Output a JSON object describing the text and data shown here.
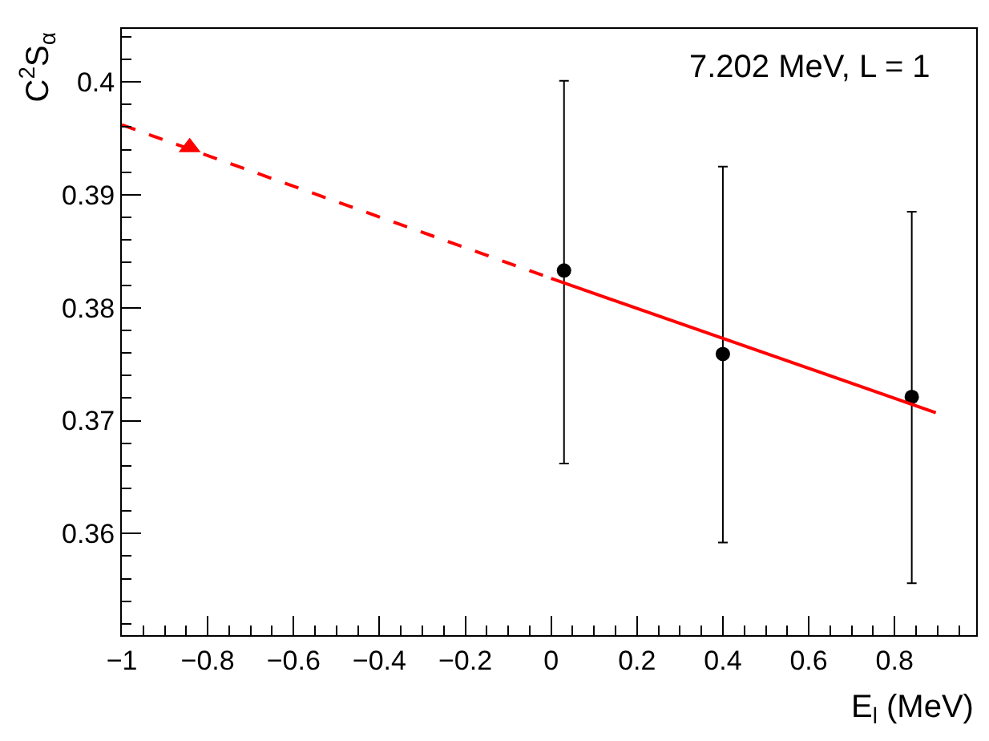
{
  "chart_data": {
    "type": "scatter",
    "xlabel": "E$_{l}$ (MeV)",
    "ylabel": "C$^{2}$S$_{α}$",
    "annotations": [
      "7.202 MeV, L = 1"
    ],
    "xlim": [
      -1,
      0.99
    ],
    "xticks": [
      {
        "value": -1,
        "label": "−1"
      },
      {
        "value": -0.8,
        "label": "−0.8"
      },
      {
        "value": -0.6,
        "label": "−0.6"
      },
      {
        "value": -0.4,
        "label": "−0.4"
      },
      {
        "value": -0.2,
        "label": "−0.2"
      },
      0,
      0.2,
      0.4,
      0.6,
      0.8
    ],
    "ylim": [
      0.351,
      0.4047
    ],
    "yticks": [
      0.36,
      0.37,
      0.38,
      0.39,
      0.4
    ],
    "grid": false,
    "series": [
      {
        "marker": "circle",
        "color": "#000000",
        "x": [
          0.03,
          0.4,
          0.84
        ],
        "values": [
          0.3833,
          0.3759,
          0.3721
        ],
        "errors": [
          [
            0.3662,
            0.4001
          ],
          [
            0.3592,
            0.3925
          ],
          [
            0.3556,
            0.3885
          ]
        ]
      },
      {
        "type": "line",
        "marker": "none",
        "line_style": "solid",
        "color": "#ff0000",
        "x": [
          0,
          0.896
        ],
        "values": [
          0.3826,
          0.3707
        ]
      },
      {
        "type": "line",
        "marker": "none",
        "line_style": "dashed",
        "color": "#ff0000",
        "x": [
          -1,
          0
        ],
        "values": [
          0.3962,
          0.3826
        ]
      },
      {
        "marker": "triangle",
        "color": "#ff0000",
        "x": [
          -0.842
        ],
        "values": [
          0.3942
        ]
      }
    ]
  }
}
